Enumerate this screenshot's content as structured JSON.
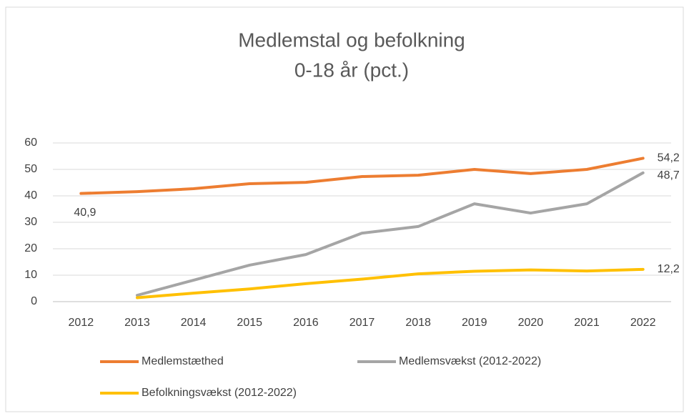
{
  "chart_data": {
    "type": "line",
    "title": [
      "Medlemstal og befolkning",
      "0-18 år (pct.)"
    ],
    "categories": [
      "2012",
      "2013",
      "2014",
      "2015",
      "2016",
      "2017",
      "2018",
      "2019",
      "2020",
      "2021",
      "2022"
    ],
    "series": [
      {
        "name": "Medlemstæthed",
        "color": "#ED7D31",
        "values": [
          40.9,
          41.6,
          42.7,
          44.6,
          45.1,
          47.3,
          47.8,
          50,
          48.4,
          50,
          54.2
        ],
        "value_labels": [
          "40,9",
          null,
          null,
          null,
          null,
          null,
          null,
          null,
          null,
          null,
          "54,2"
        ]
      },
      {
        "name": "Medlemsvækst (2012-2022)",
        "color": "#A5A5A5",
        "values": [
          null,
          2.4,
          8.1,
          13.8,
          17.8,
          25.9,
          28.4,
          37,
          33.5,
          37,
          48.7
        ],
        "value_labels": [
          null,
          null,
          null,
          null,
          null,
          null,
          null,
          null,
          null,
          null,
          "48,7"
        ]
      },
      {
        "name": "Befolkningsvækst (2012-2022)",
        "color": "#FFC000",
        "values": [
          null,
          1.5,
          3.2,
          4.8,
          6.8,
          8.5,
          10.5,
          11.5,
          12,
          11.6,
          12.2
        ],
        "value_labels": [
          null,
          null,
          null,
          null,
          null,
          null,
          null,
          null,
          null,
          null,
          "12,2"
        ]
      }
    ],
    "ylim": [
      0,
      60
    ],
    "yticks": [
      0,
      10,
      20,
      30,
      40,
      50,
      60
    ],
    "grid": true,
    "legend": "bottom"
  }
}
